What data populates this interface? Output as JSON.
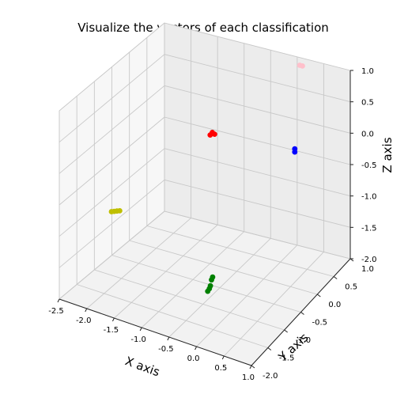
{
  "chart_data": {
    "type": "scatter",
    "projection": "3d",
    "title": "Visualize the vectors of each classification",
    "xlabel": "X axis",
    "ylabel": "Y axis",
    "zlabel": "Z axis",
    "xlim": [
      -2.5,
      1.0
    ],
    "ylim": [
      -2.0,
      1.0
    ],
    "zlim": [
      -2.0,
      1.0
    ],
    "x_ticks": [
      "-2.5",
      "-2.0",
      "-1.5",
      "-1.0",
      "-0.5",
      "0.0",
      "0.5",
      "1.0"
    ],
    "y_ticks": [
      "-2.0",
      "-1.5",
      "-1.0",
      "-0.5",
      "0.0",
      "0.5",
      "1.0"
    ],
    "z_ticks": [
      "-2.0",
      "-1.5",
      "-1.0",
      "-0.5",
      "0.0",
      "0.5",
      "1.0"
    ],
    "grid": true,
    "series": [
      {
        "color": "#ff0000",
        "points": [
          [
            -0.9,
            -0.15,
            0.15
          ],
          [
            -0.85,
            -0.1,
            0.15
          ],
          [
            -0.88,
            -0.12,
            0.18
          ]
        ]
      },
      {
        "color": "#0000ff",
        "points": [
          [
            0.3,
            0.45,
            -0.15
          ],
          [
            0.3,
            0.45,
            -0.1
          ]
        ]
      },
      {
        "color": "#ffc0cb",
        "points": [
          [
            0.3,
            0.6,
            1.15
          ],
          [
            0.35,
            0.6,
            1.15
          ]
        ]
      },
      {
        "color": "#bfbf00",
        "points": [
          [
            -1.5,
            -2.0,
            -0.3
          ],
          [
            -1.45,
            -2.0,
            -0.28
          ],
          [
            -1.55,
            -2.0,
            -0.32
          ],
          [
            -1.4,
            -2.0,
            -0.26
          ]
        ]
      },
      {
        "color": "#008000",
        "points": [
          [
            -0.35,
            -1.1,
            -1.7
          ],
          [
            -0.3,
            -1.1,
            -1.6
          ],
          [
            -0.28,
            -1.1,
            -1.5
          ],
          [
            -0.32,
            -1.1,
            -1.65
          ],
          [
            -0.26,
            -1.1,
            -1.45
          ]
        ]
      }
    ]
  }
}
